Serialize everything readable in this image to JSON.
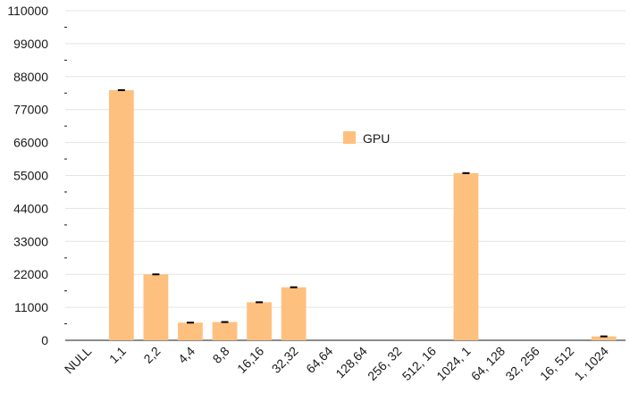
{
  "colors": {
    "bar": "#fec07f",
    "grid": "#e4e4e4",
    "axis": "#1a1a1a",
    "error_bar": "#000000"
  },
  "chart_data": {
    "type": "bar",
    "title": "",
    "xlabel": "",
    "ylabel": "",
    "ylim": [
      0,
      110000
    ],
    "y_ticks": [
      0,
      11000,
      22000,
      33000,
      44000,
      55000,
      66000,
      77000,
      88000,
      99000,
      110000
    ],
    "y_tick_labels": [
      "0",
      "11000",
      "22000",
      "33000",
      "44000",
      "55000",
      "66000",
      "77000",
      "88000",
      "99000",
      "110000"
    ],
    "grid": true,
    "legend_position": "center-right",
    "categories": [
      "NULL",
      "1,1",
      "2,2",
      "4,4",
      "8,8",
      "16,16",
      "32,32",
      "64,64",
      "128,64",
      "256, 32",
      "512, 16",
      "1024, 1",
      "64, 128",
      "32, 256",
      "16, 512",
      "1, 1024"
    ],
    "series": [
      {
        "name": "GPU",
        "values": [
          0,
          83500,
          22000,
          5900,
          6100,
          12700,
          17700,
          0,
          0,
          0,
          0,
          55800,
          0,
          0,
          0,
          1300
        ],
        "errors": [
          0,
          300,
          300,
          300,
          300,
          300,
          300,
          0,
          0,
          0,
          0,
          300,
          0,
          0,
          0,
          300
        ]
      }
    ]
  }
}
